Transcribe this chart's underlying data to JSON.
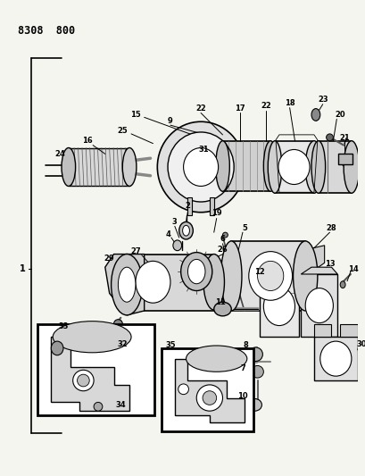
{
  "title": "8308 800",
  "bg_color": "#f5f5f0",
  "fig_width": 4.1,
  "fig_height": 5.33,
  "dpi": 100
}
